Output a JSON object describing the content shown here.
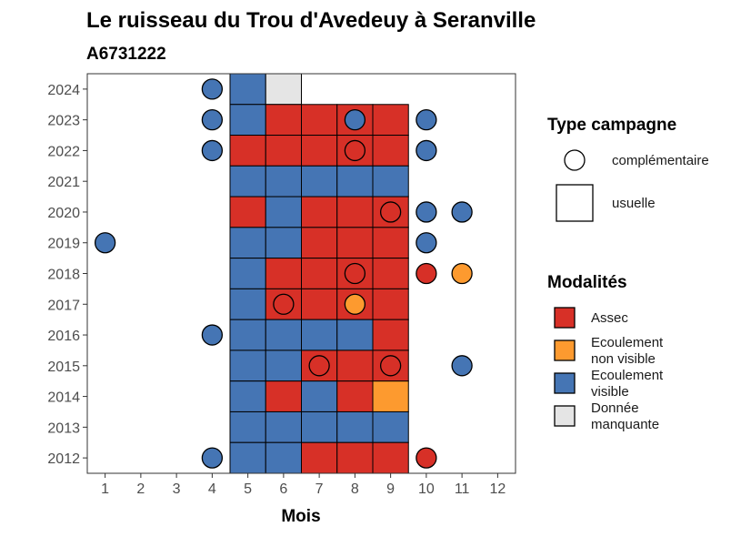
{
  "chart_data": {
    "type": "heatmap",
    "title": "Le ruisseau du Trou d'Avedeuy à Seranville",
    "subtitle": "A6731222",
    "xlabel": "Mois",
    "ylabel": "",
    "x_ticks": [
      "1",
      "2",
      "3",
      "4",
      "5",
      "6",
      "7",
      "8",
      "9",
      "10",
      "11",
      "12"
    ],
    "y_ticks": [
      "2012",
      "2013",
      "2014",
      "2015",
      "2016",
      "2017",
      "2018",
      "2019",
      "2020",
      "2021",
      "2022",
      "2023",
      "2024"
    ],
    "xlim": [
      0.5,
      12.5
    ],
    "ylim": [
      2011.5,
      2024.5
    ],
    "colors": {
      "Assec": "#d73027",
      "Ecoulement non visible": "#fd9a2f",
      "Ecoulement visible": "#4575b4",
      "Donnée manquante": "#e5e5e5"
    },
    "legend_type": {
      "title": "Type campagne",
      "entries": [
        {
          "key": "complementaire",
          "label": "complémentaire",
          "shape": "circle"
        },
        {
          "key": "usuelle",
          "label": "usuelle",
          "shape": "square"
        }
      ]
    },
    "legend_modalites": {
      "title": "Modalités",
      "entries": [
        {
          "key": "Assec",
          "lines": [
            "Assec"
          ]
        },
        {
          "key": "Ecoulement non visible",
          "lines": [
            "Ecoulement",
            "non visible"
          ]
        },
        {
          "key": "Ecoulement visible",
          "lines": [
            "Ecoulement",
            "visible"
          ]
        },
        {
          "key": "Donnée manquante",
          "lines": [
            "Donnée",
            "manquante"
          ]
        }
      ]
    },
    "tiles": [
      {
        "year": 2024,
        "month": 5,
        "value": "Ecoulement visible"
      },
      {
        "year": 2024,
        "month": 6,
        "value": "Donnée manquante"
      },
      {
        "year": 2023,
        "month": 5,
        "value": "Ecoulement visible"
      },
      {
        "year": 2023,
        "month": 6,
        "value": "Assec"
      },
      {
        "year": 2023,
        "month": 7,
        "value": "Assec"
      },
      {
        "year": 2023,
        "month": 8,
        "value": "Assec"
      },
      {
        "year": 2023,
        "month": 9,
        "value": "Assec"
      },
      {
        "year": 2022,
        "month": 5,
        "value": "Assec"
      },
      {
        "year": 2022,
        "month": 6,
        "value": "Assec"
      },
      {
        "year": 2022,
        "month": 7,
        "value": "Assec"
      },
      {
        "year": 2022,
        "month": 8,
        "value": "Assec"
      },
      {
        "year": 2022,
        "month": 9,
        "value": "Assec"
      },
      {
        "year": 2021,
        "month": 5,
        "value": "Ecoulement visible"
      },
      {
        "year": 2021,
        "month": 6,
        "value": "Ecoulement visible"
      },
      {
        "year": 2021,
        "month": 7,
        "value": "Ecoulement visible"
      },
      {
        "year": 2021,
        "month": 8,
        "value": "Ecoulement visible"
      },
      {
        "year": 2021,
        "month": 9,
        "value": "Ecoulement visible"
      },
      {
        "year": 2020,
        "month": 5,
        "value": "Assec"
      },
      {
        "year": 2020,
        "month": 6,
        "value": "Ecoulement visible"
      },
      {
        "year": 2020,
        "month": 7,
        "value": "Assec"
      },
      {
        "year": 2020,
        "month": 8,
        "value": "Assec"
      },
      {
        "year": 2020,
        "month": 9,
        "value": "Assec"
      },
      {
        "year": 2019,
        "month": 5,
        "value": "Ecoulement visible"
      },
      {
        "year": 2019,
        "month": 6,
        "value": "Ecoulement visible"
      },
      {
        "year": 2019,
        "month": 7,
        "value": "Assec"
      },
      {
        "year": 2019,
        "month": 8,
        "value": "Assec"
      },
      {
        "year": 2019,
        "month": 9,
        "value": "Assec"
      },
      {
        "year": 2018,
        "month": 5,
        "value": "Ecoulement visible"
      },
      {
        "year": 2018,
        "month": 6,
        "value": "Assec"
      },
      {
        "year": 2018,
        "month": 7,
        "value": "Assec"
      },
      {
        "year": 2018,
        "month": 8,
        "value": "Assec"
      },
      {
        "year": 2018,
        "month": 9,
        "value": "Assec"
      },
      {
        "year": 2017,
        "month": 5,
        "value": "Ecoulement visible"
      },
      {
        "year": 2017,
        "month": 6,
        "value": "Assec"
      },
      {
        "year": 2017,
        "month": 7,
        "value": "Assec"
      },
      {
        "year": 2017,
        "month": 8,
        "value": "Assec"
      },
      {
        "year": 2017,
        "month": 9,
        "value": "Assec"
      },
      {
        "year": 2016,
        "month": 5,
        "value": "Ecoulement visible"
      },
      {
        "year": 2016,
        "month": 6,
        "value": "Ecoulement visible"
      },
      {
        "year": 2016,
        "month": 7,
        "value": "Ecoulement visible"
      },
      {
        "year": 2016,
        "month": 8,
        "value": "Ecoulement visible"
      },
      {
        "year": 2016,
        "month": 9,
        "value": "Assec"
      },
      {
        "year": 2015,
        "month": 5,
        "value": "Ecoulement visible"
      },
      {
        "year": 2015,
        "month": 6,
        "value": "Ecoulement visible"
      },
      {
        "year": 2015,
        "month": 7,
        "value": "Assec"
      },
      {
        "year": 2015,
        "month": 8,
        "value": "Assec"
      },
      {
        "year": 2015,
        "month": 9,
        "value": "Assec"
      },
      {
        "year": 2014,
        "month": 5,
        "value": "Ecoulement visible"
      },
      {
        "year": 2014,
        "month": 6,
        "value": "Assec"
      },
      {
        "year": 2014,
        "month": 7,
        "value": "Ecoulement visible"
      },
      {
        "year": 2014,
        "month": 8,
        "value": "Assec"
      },
      {
        "year": 2014,
        "month": 9,
        "value": "Ecoulement non visible"
      },
      {
        "year": 2013,
        "month": 5,
        "value": "Ecoulement visible"
      },
      {
        "year": 2013,
        "month": 6,
        "value": "Ecoulement visible"
      },
      {
        "year": 2013,
        "month": 7,
        "value": "Ecoulement visible"
      },
      {
        "year": 2013,
        "month": 8,
        "value": "Ecoulement visible"
      },
      {
        "year": 2013,
        "month": 9,
        "value": "Ecoulement visible"
      },
      {
        "year": 2012,
        "month": 5,
        "value": "Ecoulement visible"
      },
      {
        "year": 2012,
        "month": 6,
        "value": "Ecoulement visible"
      },
      {
        "year": 2012,
        "month": 7,
        "value": "Assec"
      },
      {
        "year": 2012,
        "month": 8,
        "value": "Assec"
      },
      {
        "year": 2012,
        "month": 9,
        "value": "Assec"
      }
    ],
    "points": [
      {
        "year": 2024,
        "month": 4,
        "value": "Ecoulement visible"
      },
      {
        "year": 2023,
        "month": 4,
        "value": "Ecoulement visible"
      },
      {
        "year": 2023,
        "month": 8,
        "value": "Ecoulement visible"
      },
      {
        "year": 2023,
        "month": 10,
        "value": "Ecoulement visible"
      },
      {
        "year": 2022,
        "month": 4,
        "value": "Ecoulement visible"
      },
      {
        "year": 2022,
        "month": 8,
        "value": "Assec"
      },
      {
        "year": 2022,
        "month": 10,
        "value": "Ecoulement visible"
      },
      {
        "year": 2020,
        "month": 9,
        "value": "Assec"
      },
      {
        "year": 2020,
        "month": 10,
        "value": "Ecoulement visible"
      },
      {
        "year": 2020,
        "month": 11,
        "value": "Ecoulement visible"
      },
      {
        "year": 2019,
        "month": 1,
        "value": "Ecoulement visible"
      },
      {
        "year": 2019,
        "month": 10,
        "value": "Ecoulement visible"
      },
      {
        "year": 2018,
        "month": 8,
        "value": "Assec"
      },
      {
        "year": 2018,
        "month": 10,
        "value": "Assec"
      },
      {
        "year": 2018,
        "month": 11,
        "value": "Ecoulement non visible"
      },
      {
        "year": 2017,
        "month": 6,
        "value": "Assec"
      },
      {
        "year": 2017,
        "month": 8,
        "value": "Ecoulement non visible"
      },
      {
        "year": 2016,
        "month": 4,
        "value": "Ecoulement visible"
      },
      {
        "year": 2015,
        "month": 7,
        "value": "Assec"
      },
      {
        "year": 2015,
        "month": 9,
        "value": "Assec"
      },
      {
        "year": 2015,
        "month": 11,
        "value": "Ecoulement visible"
      },
      {
        "year": 2012,
        "month": 4,
        "value": "Ecoulement visible"
      },
      {
        "year": 2012,
        "month": 10,
        "value": "Assec"
      }
    ]
  }
}
